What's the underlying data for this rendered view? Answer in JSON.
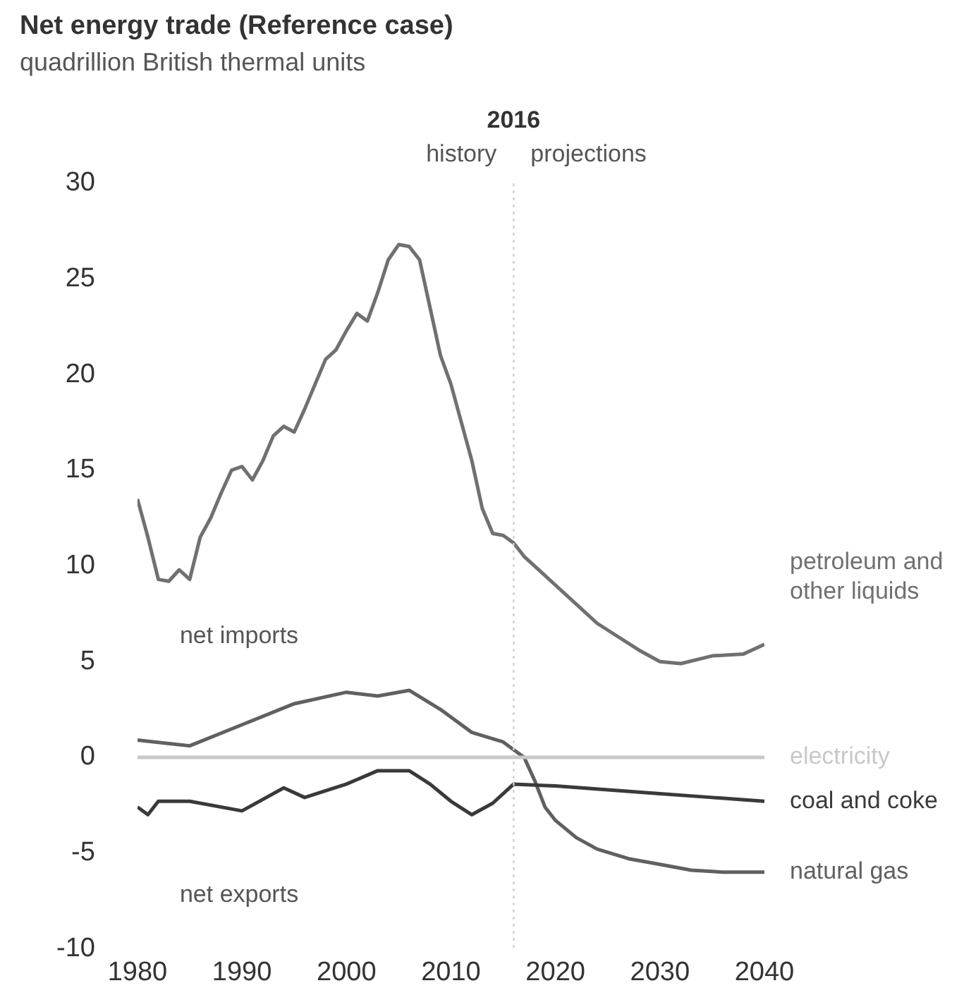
{
  "chart_data": {
    "type": "line",
    "title": "Net energy trade (Reference case)",
    "subtitle": "quadrillion British thermal units",
    "xlim": [
      1980,
      2040
    ],
    "xticks": [
      1980,
      1990,
      2000,
      2010,
      2020,
      2030,
      2040
    ],
    "ylim": [
      -10,
      30
    ],
    "yticks": [
      -10,
      -5,
      0,
      5,
      10,
      15,
      20,
      25,
      30
    ],
    "grid": false,
    "legend": false,
    "marker": "none",
    "line_style": "solid",
    "ref_lines": [
      {
        "axis": "x",
        "value": 2016,
        "label": "2016",
        "color": "#d0d0d0",
        "line_style": "dotted"
      }
    ],
    "annotations": [
      "history",
      "projections",
      "net imports",
      "net exports"
    ],
    "series": [
      {
        "name": "petroleum and other liquids",
        "color": "#707070",
        "x": [
          1980,
          1981,
          1982,
          1983,
          1984,
          1985,
          1986,
          1987,
          1988,
          1989,
          1990,
          1991,
          1992,
          1993,
          1994,
          1995,
          1996,
          1997,
          1998,
          1999,
          2000,
          2001,
          2002,
          2003,
          2004,
          2005,
          2006,
          2007,
          2008,
          2009,
          2010,
          2011,
          2012,
          2013,
          2014,
          2015,
          2016,
          2017,
          2018,
          2020,
          2022,
          2024,
          2026,
          2028,
          2030,
          2032,
          2035,
          2038,
          2040
        ],
        "values": [
          13.5,
          11.5,
          9.3,
          9.2,
          9.8,
          9.3,
          11.5,
          12.5,
          13.8,
          15.0,
          15.2,
          14.5,
          15.5,
          16.8,
          17.3,
          17.0,
          18.2,
          19.5,
          20.8,
          21.3,
          22.3,
          23.2,
          22.8,
          24.3,
          26.0,
          26.8,
          26.7,
          26.0,
          23.5,
          21.0,
          19.5,
          17.5,
          15.5,
          13.0,
          11.7,
          11.6,
          11.2,
          10.5,
          10.0,
          9.0,
          8.0,
          7.0,
          6.3,
          5.6,
          5.0,
          4.9,
          5.3,
          5.4,
          5.9
        ]
      },
      {
        "name": "electricity",
        "color": "#c8c8c8",
        "x": [
          1980,
          2040
        ],
        "values": [
          0,
          0
        ]
      },
      {
        "name": "coal and coke",
        "color": "#3a3a3a",
        "x": [
          1980,
          1981,
          1982,
          1985,
          1990,
          1992,
          1994,
          1996,
          2000,
          2003,
          2006,
          2008,
          2010,
          2012,
          2014,
          2016,
          2020,
          2025,
          2030,
          2035,
          2040
        ],
        "values": [
          -2.6,
          -3.0,
          -2.3,
          -2.3,
          -2.8,
          -2.2,
          -1.6,
          -2.1,
          -1.4,
          -0.7,
          -0.7,
          -1.4,
          -2.3,
          -3.0,
          -2.4,
          -1.4,
          -1.5,
          -1.7,
          -1.9,
          -2.1,
          -2.3
        ]
      },
      {
        "name": "natural gas",
        "color": "#606060",
        "x": [
          1980,
          1985,
          1990,
          1995,
          2000,
          2003,
          2006,
          2009,
          2012,
          2015,
          2017,
          2018,
          2019,
          2020,
          2022,
          2024,
          2027,
          2030,
          2033,
          2036,
          2040
        ],
        "values": [
          0.9,
          0.6,
          1.7,
          2.8,
          3.4,
          3.2,
          3.5,
          2.5,
          1.3,
          0.8,
          0.0,
          -1.2,
          -2.6,
          -3.3,
          -4.2,
          -4.8,
          -5.3,
          -5.6,
          -5.9,
          -6.0,
          -6.0
        ]
      }
    ]
  }
}
